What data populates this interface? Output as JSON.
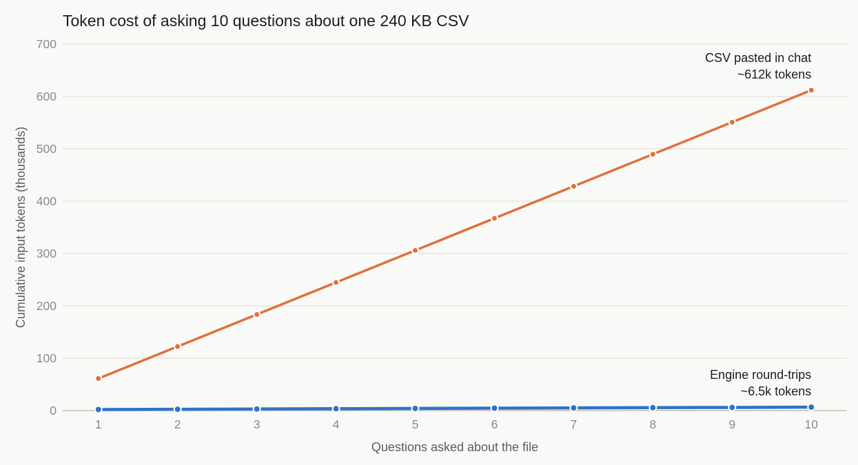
{
  "chart_data": {
    "type": "line",
    "title": "Token cost of asking 10 questions about one 240 KB CSV",
    "xlabel": "Questions asked about the file",
    "ylabel": "Cumulative input tokens (thousands)",
    "x": [
      1,
      2,
      3,
      4,
      5,
      6,
      7,
      8,
      9,
      10
    ],
    "xlim": [
      0.55,
      10.45
    ],
    "ylim": [
      0,
      700
    ],
    "yticks": [
      0,
      100,
      200,
      300,
      400,
      500,
      600,
      700
    ],
    "grid": true,
    "series": [
      {
        "key": "csv",
        "color": "#e0703e",
        "values": [
          61.2,
          122.4,
          183.6,
          244.8,
          306.0,
          367.2,
          428.4,
          489.6,
          550.8,
          612.0
        ],
        "annotation": [
          "CSV pasted in chat",
          "~612k tokens"
        ]
      },
      {
        "key": "engine",
        "color": "#2f73c9",
        "values": [
          2.0,
          2.5,
          3.0,
          3.6,
          4.1,
          4.6,
          5.1,
          5.6,
          6.0,
          6.5
        ],
        "annotation": [
          "Engine round-trips",
          "~6.5k tokens"
        ]
      }
    ]
  }
}
